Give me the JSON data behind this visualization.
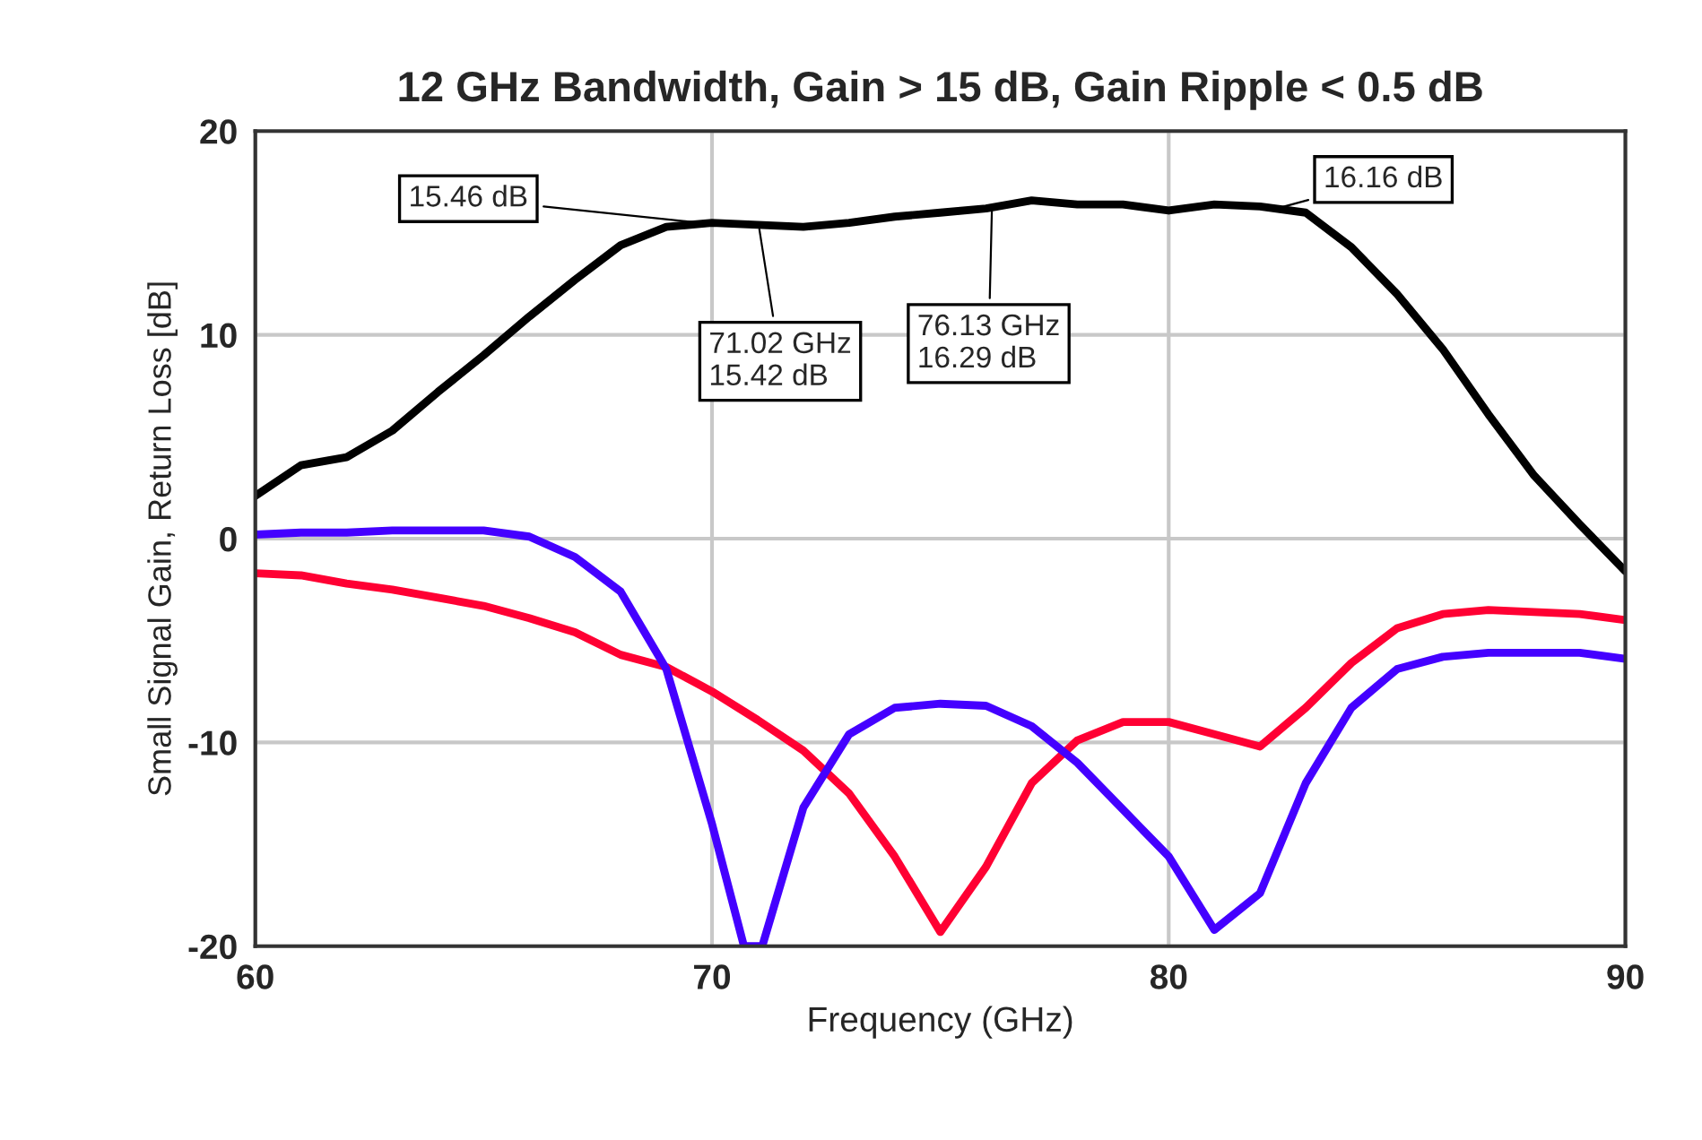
{
  "chart_data": {
    "type": "line",
    "title": "12 GHz Bandwidth, Gain > 15 dB, Gain Ripple < 0.5 dB",
    "xlabel": "Frequency (GHz)",
    "ylabel": "Small Signal Gain, Return Loss [dB]",
    "xlim": [
      60,
      90
    ],
    "xticks": [
      60,
      70,
      80,
      90
    ],
    "ylim": [
      -20,
      20
    ],
    "yticks": [
      -20,
      -10,
      0,
      10,
      20
    ],
    "grid": true,
    "line_style": "solid",
    "series": [
      {
        "color": "#000000",
        "x": [
          60,
          61,
          62,
          63,
          64,
          65,
          66,
          67,
          68,
          69,
          70,
          71,
          72,
          73,
          74,
          75,
          76,
          77,
          78,
          79,
          80,
          81,
          82,
          83,
          84,
          85,
          86,
          87,
          88,
          89,
          90
        ],
        "values": [
          2.1,
          3.6,
          4.0,
          5.3,
          7.2,
          9.0,
          10.9,
          12.7,
          14.4,
          15.3,
          15.5,
          15.4,
          15.3,
          15.5,
          15.8,
          16.0,
          16.2,
          16.6,
          16.4,
          16.4,
          16.1,
          16.4,
          16.3,
          16.0,
          14.3,
          12.0,
          9.3,
          6.1,
          3.1,
          0.7,
          -1.6
        ]
      },
      {
        "color": "#ff0033",
        "x": [
          60,
          61,
          62,
          63,
          64,
          65,
          66,
          67,
          68,
          69,
          70,
          71,
          72,
          73,
          74,
          75,
          76,
          77,
          78,
          79,
          80,
          81,
          82,
          83,
          84,
          85,
          86,
          87,
          88,
          89,
          90
        ],
        "values": [
          -1.7,
          -1.8,
          -2.2,
          -2.5,
          -2.9,
          -3.3,
          -3.9,
          -4.6,
          -5.7,
          -6.3,
          -7.5,
          -8.9,
          -10.4,
          -12.5,
          -15.6,
          -19.3,
          -16.1,
          -12.0,
          -9.9,
          -9.0,
          -9.0,
          -9.6,
          -10.2,
          -8.3,
          -6.1,
          -4.4,
          -3.7,
          -3.5,
          -3.6,
          -3.7,
          -4.0
        ]
      },
      {
        "color": "#4400ff",
        "x": [
          60,
          61,
          62,
          63,
          64,
          65,
          66,
          67,
          68,
          69,
          70,
          70.7,
          71.1,
          72,
          73,
          74,
          75,
          76,
          77,
          78,
          79,
          80,
          81,
          82,
          83,
          84,
          85,
          86,
          87,
          88,
          89,
          90
        ],
        "values": [
          0.2,
          0.3,
          0.3,
          0.4,
          0.4,
          0.4,
          0.1,
          -0.9,
          -2.6,
          -6.4,
          -14.0,
          -20,
          -20,
          -13.2,
          -9.6,
          -8.3,
          -8.1,
          -8.2,
          -9.2,
          -11.0,
          -13.3,
          -15.6,
          -19.2,
          -17.4,
          -12.0,
          -8.3,
          -6.4,
          -5.8,
          -5.6,
          -5.6,
          -5.6,
          -5.9
        ]
      }
    ],
    "annotations": [
      {
        "text": "15.46 dB",
        "x": 69.9,
        "y": 15.46
      },
      {
        "text": "71.02 GHz\n15.42 dB",
        "x": 71.02,
        "y": 15.42
      },
      {
        "text": "76.13 GHz\n16.29 dB",
        "x": 76.13,
        "y": 16.29
      },
      {
        "text": "16.16 dB",
        "x": 82.3,
        "y": 16.16
      }
    ]
  }
}
